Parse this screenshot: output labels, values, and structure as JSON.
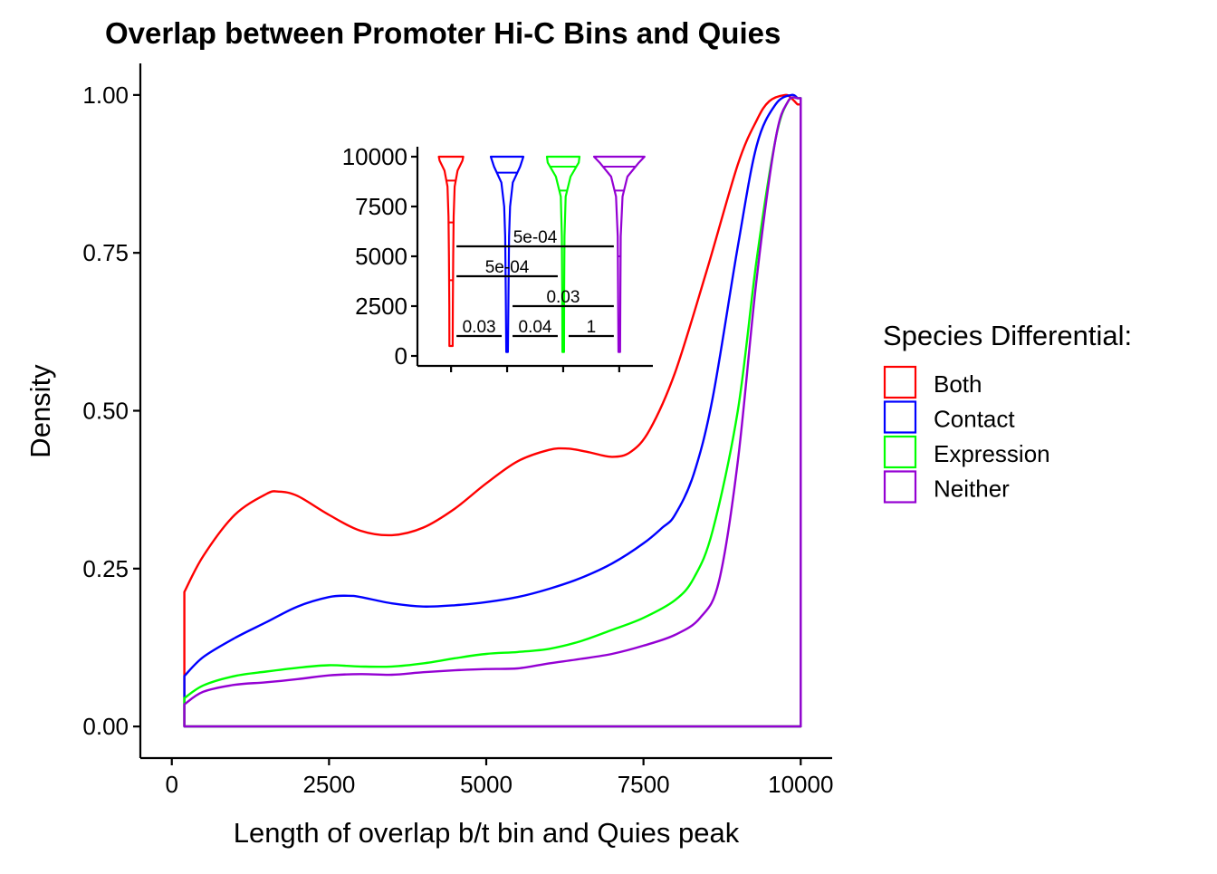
{
  "chart_data": {
    "type": "density",
    "title": "Overlap between Promoter Hi-C Bins and Quies",
    "xlabel": "Length of overlap b/t bin and Quies peak",
    "ylabel": "Density",
    "xlim": [
      -500,
      10500
    ],
    "ylim": [
      -0.05,
      1.05
    ],
    "x_ticks": [
      {
        "value": 0,
        "label": "0"
      },
      {
        "value": 2500,
        "label": "2500"
      },
      {
        "value": 5000,
        "label": "5000"
      },
      {
        "value": 7500,
        "label": "7500"
      },
      {
        "value": 10000,
        "label": "10000"
      }
    ],
    "y_ticks": [
      {
        "value": 0,
        "label": "0.00"
      },
      {
        "value": 0.25,
        "label": "0.25"
      },
      {
        "value": 0.5,
        "label": "0.50"
      },
      {
        "value": 0.75,
        "label": "0.75"
      },
      {
        "value": 1,
        "label": "1.00"
      }
    ],
    "legend": {
      "title": "Species Differential:",
      "position": "right"
    },
    "series": [
      {
        "name": "Both",
        "color": "#FF0000",
        "x": [
          200,
          500,
          1000,
          1500,
          1700,
          2000,
          2500,
          3000,
          3500,
          4000,
          4500,
          5000,
          5500,
          6000,
          6300,
          6600,
          7000,
          7300,
          7600,
          8000,
          8500,
          9000,
          9300,
          9500,
          9750,
          9850,
          9950,
          10000
        ],
        "y": [
          0.213,
          0.27,
          0.335,
          0.368,
          0.372,
          0.365,
          0.335,
          0.31,
          0.303,
          0.315,
          0.345,
          0.385,
          0.42,
          0.438,
          0.44,
          0.435,
          0.427,
          0.435,
          0.47,
          0.56,
          0.72,
          0.89,
          0.96,
          0.99,
          1.0,
          0.995,
          0.985,
          0.0
        ]
      },
      {
        "name": "Contact",
        "color": "#0000FF",
        "x": [
          200,
          500,
          1000,
          1500,
          2000,
          2500,
          2800,
          3000,
          3500,
          4000,
          4500,
          5000,
          5500,
          6000,
          6500,
          7000,
          7500,
          7800,
          8000,
          8300,
          8600,
          9000,
          9300,
          9600,
          9850,
          9950,
          10000
        ],
        "y": [
          0.08,
          0.11,
          0.14,
          0.165,
          0.19,
          0.205,
          0.207,
          0.205,
          0.195,
          0.19,
          0.192,
          0.197,
          0.205,
          0.218,
          0.235,
          0.258,
          0.29,
          0.315,
          0.335,
          0.4,
          0.52,
          0.76,
          0.92,
          0.985,
          1.0,
          0.995,
          0.0
        ]
      },
      {
        "name": "Expression",
        "color": "#00FF00",
        "x": [
          200,
          500,
          1000,
          1500,
          2000,
          2500,
          3000,
          3500,
          4000,
          4500,
          5000,
          5500,
          6000,
          6500,
          7000,
          7500,
          8000,
          8300,
          8600,
          9000,
          9300,
          9600,
          9800,
          9950,
          10000
        ],
        "y": [
          0.045,
          0.065,
          0.08,
          0.087,
          0.093,
          0.097,
          0.095,
          0.095,
          0.1,
          0.108,
          0.115,
          0.118,
          0.123,
          0.135,
          0.153,
          0.172,
          0.2,
          0.235,
          0.31,
          0.5,
          0.74,
          0.93,
          0.99,
          0.995,
          0.0
        ]
      },
      {
        "name": "Neither",
        "color": "#9400D3",
        "x": [
          200,
          500,
          1000,
          1500,
          2000,
          2500,
          3000,
          3500,
          4000,
          4500,
          5000,
          5500,
          6000,
          6500,
          7000,
          7500,
          8000,
          8400,
          8700,
          9000,
          9300,
          9600,
          9800,
          9950,
          10000
        ],
        "y": [
          0.035,
          0.055,
          0.066,
          0.07,
          0.075,
          0.081,
          0.083,
          0.082,
          0.086,
          0.089,
          0.091,
          0.092,
          0.1,
          0.107,
          0.115,
          0.128,
          0.145,
          0.172,
          0.23,
          0.42,
          0.71,
          0.93,
          0.99,
          0.995,
          0.0
        ]
      }
    ],
    "inset": {
      "type": "violin",
      "ylim": [
        -500,
        10500
      ],
      "y_ticks": [
        {
          "value": 0,
          "label": "0"
        },
        {
          "value": 2500,
          "label": "2500"
        },
        {
          "value": 5000,
          "label": "5000"
        },
        {
          "value": 7500,
          "label": "7500"
        },
        {
          "value": 10000,
          "label": "10000"
        }
      ],
      "groups": [
        {
          "name": "Both",
          "color": "#FF0000",
          "quantiles": [
            3800,
            6700,
            8800
          ],
          "profile": [
            [
              500,
              0.1
            ],
            [
              2500,
              0.11
            ],
            [
              5000,
              0.13
            ],
            [
              7000,
              0.16
            ],
            [
              8500,
              0.22
            ],
            [
              9300,
              0.4
            ],
            [
              9800,
              0.7
            ],
            [
              10000,
              0.75
            ]
          ]
        },
        {
          "name": "Contact",
          "color": "#0000FF",
          "quantiles": [
            9200
          ],
          "profile": [
            [
              200,
              0.05
            ],
            [
              3000,
              0.08
            ],
            [
              6000,
              0.12
            ],
            [
              7500,
              0.18
            ],
            [
              8700,
              0.35
            ],
            [
              9500,
              0.8
            ],
            [
              10000,
              1.0
            ]
          ]
        },
        {
          "name": "Expression",
          "color": "#00FF00",
          "quantiles": [
            8300,
            9500
          ],
          "profile": [
            [
              200,
              0.05
            ],
            [
              3000,
              0.06
            ],
            [
              6000,
              0.08
            ],
            [
              8000,
              0.15
            ],
            [
              9000,
              0.45
            ],
            [
              9700,
              0.95
            ],
            [
              10000,
              1.0
            ]
          ]
        },
        {
          "name": "Neither",
          "color": "#9400D3",
          "quantiles": [
            5000,
            8300,
            9500
          ],
          "profile": [
            [
              200,
              0.05
            ],
            [
              3000,
              0.07
            ],
            [
              6000,
              0.09
            ],
            [
              8000,
              0.2
            ],
            [
              9000,
              0.5
            ],
            [
              9700,
              1.2
            ],
            [
              10000,
              1.55
            ]
          ]
        }
      ],
      "brackets": [
        {
          "from": 0,
          "to": 3,
          "y": 5500,
          "label": "5e-04"
        },
        {
          "from": 0,
          "to": 2,
          "y": 4000,
          "label": "5e-04"
        },
        {
          "from": 1,
          "to": 3,
          "y": 2500,
          "label": "0.03"
        },
        {
          "from": 0,
          "to": 1,
          "y": 1000,
          "label": "0.03"
        },
        {
          "from": 1,
          "to": 2,
          "y": 1000,
          "label": "0.04"
        },
        {
          "from": 2,
          "to": 3,
          "y": 1000,
          "label": "1"
        }
      ]
    }
  }
}
